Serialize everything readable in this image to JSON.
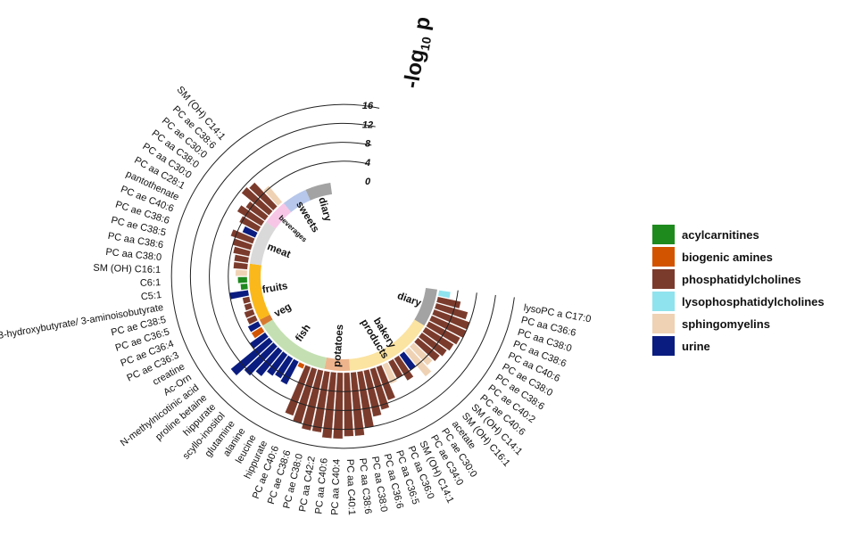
{
  "chart_data": {
    "type": "bar",
    "layout": "circular",
    "title": "-log10 p",
    "title_main": "-log",
    "title_sub": "10",
    "title_end": " p",
    "radial_ticks": [
      "16",
      "12",
      "8",
      "4",
      "0"
    ],
    "radial_tick_values": [
      16,
      12,
      8,
      4,
      0
    ],
    "ylim": [
      0,
      16
    ],
    "legend_placement": "right",
    "colors": {
      "acylcarnitines": "#1e8a1e",
      "biogenic_amines": "#d35400",
      "phosphatidylcholines": "#7b3b2c",
      "lysophosphatidylcholines": "#8fe3ee",
      "sphingomyelins": "#efd2b4",
      "urine": "#0a1c80"
    },
    "legend": [
      {
        "key": "acylcarnitines",
        "label": "acylcarnitines",
        "color": "#1e8a1e"
      },
      {
        "key": "biogenic_amines",
        "label": "biogenic amines",
        "color": "#d35400"
      },
      {
        "key": "phosphatidylcholines",
        "label": "phosphatidylcholines",
        "color": "#7b3b2c"
      },
      {
        "key": "lysophosphatidylcholines",
        "label": "lysophosphatidylcholines",
        "color": "#8fe3ee"
      },
      {
        "key": "sphingomyelins",
        "label": "sphingomyelins",
        "color": "#efd2b4"
      },
      {
        "key": "urine",
        "label": "urine",
        "color": "#0a1c80"
      }
    ],
    "food_groups": [
      {
        "name": "diary",
        "start": 0,
        "end": 6,
        "color": "#a3a3a3"
      },
      {
        "name": "bakery",
        "name2": "products",
        "start": 6,
        "end": 20,
        "color": "#fbe3a1"
      },
      {
        "name": "potatoes",
        "start": 20,
        "end": 24,
        "color": "#eeb58c"
      },
      {
        "name": "fish",
        "start": 24,
        "end": 36,
        "color": "#c4e0b2"
      },
      {
        "name": "veg",
        "start": 36,
        "end": 37,
        "color": "#d77a2f"
      },
      {
        "name": "fruits",
        "start": 37,
        "end": 46,
        "color": "#fbb81a"
      },
      {
        "name": "meat",
        "start": 46,
        "end": 53,
        "color": "#d9d9d9"
      },
      {
        "name": "beverages",
        "start": 53,
        "end": 57,
        "color": "#f7c6e6",
        "small": true
      },
      {
        "name": "sweets",
        "start": 57,
        "end": 61,
        "color": "#b7c7eb"
      },
      {
        "name": "diary",
        "start": 61,
        "end": 65,
        "color": "#a3a3a3"
      }
    ],
    "metabolites": [
      {
        "label": "lysoPC a C17:0",
        "value": 2.5,
        "class": "lysophosphatidylcholines"
      },
      {
        "label": "PC aa C36:6",
        "value": 5.0,
        "class": "phosphatidylcholines"
      },
      {
        "label": "PC aa C38:0",
        "value": 7.0,
        "class": "phosphatidylcholines"
      },
      {
        "label": "PC aa C38:6",
        "value": 8.0,
        "class": "phosphatidylcholines"
      },
      {
        "label": "PC aa C40:6",
        "value": 8.0,
        "class": "phosphatidylcholines"
      },
      {
        "label": "PC ae C38:0",
        "value": 7.5,
        "class": "phosphatidylcholines"
      },
      {
        "label": "PC ae C38:6",
        "value": 7.0,
        "class": "phosphatidylcholines"
      },
      {
        "label": "PC ae C40:2",
        "value": 6.5,
        "class": "phosphatidylcholines"
      },
      {
        "label": "PC ae C40:6",
        "value": 6.0,
        "class": "phosphatidylcholines"
      },
      {
        "label": "SM (OH) C14:1",
        "value": 5.5,
        "class": "sphingomyelins"
      },
      {
        "label": "SM (OH) C16:1",
        "value": 7.0,
        "class": "sphingomyelins"
      },
      {
        "label": "acetate",
        "value": 4.0,
        "class": "urine"
      },
      {
        "label": "PC ae C30:0",
        "value": 5.5,
        "class": "phosphatidylcholines"
      },
      {
        "label": "PC ae C34:0",
        "value": 4.0,
        "class": "phosphatidylcholines"
      },
      {
        "label": "SM (OH) C14:1",
        "value": 4.5,
        "class": "sphingomyelins"
      },
      {
        "label": "PC aa C36:0",
        "value": 7.5,
        "class": "phosphatidylcholines"
      },
      {
        "label": "PC aa C36:5",
        "value": 9.0,
        "class": "phosphatidylcholines"
      },
      {
        "label": "PC aa C36:6",
        "value": 10.0,
        "class": "phosphatidylcholines"
      },
      {
        "label": "PC aa C38:0",
        "value": 12.0,
        "class": "phosphatidylcholines"
      },
      {
        "label": "PC aa C38:6",
        "value": 13.5,
        "class": "phosphatidylcholines"
      },
      {
        "label": "PC aa C40:1",
        "value": 13.5,
        "class": "phosphatidylcholines"
      },
      {
        "label": "PC aa C40:4",
        "value": 14.0,
        "class": "phosphatidylcholines"
      },
      {
        "label": "PC aa C40:6",
        "value": 14.0,
        "class": "phosphatidylcholines"
      },
      {
        "label": "PC aa C42:2",
        "value": 13.0,
        "class": "phosphatidylcholines"
      },
      {
        "label": "PC ae C38:0",
        "value": 13.0,
        "class": "phosphatidylcholines"
      },
      {
        "label": "PC ae C38:6",
        "value": 12.0,
        "class": "phosphatidylcholines"
      },
      {
        "label": "PC ae C40:6",
        "value": 11.0,
        "class": "phosphatidylcholines"
      },
      {
        "label": "hippurate",
        "value": 1.0,
        "class": "biogenic_amines"
      },
      {
        "label": "leucine",
        "value": 5.5,
        "class": "urine"
      },
      {
        "label": "alanine",
        "value": 5.0,
        "class": "urine"
      },
      {
        "label": "glutamine",
        "value": 5.5,
        "class": "urine"
      },
      {
        "label": "scyllo-inositol",
        "value": 7.0,
        "class": "urine"
      },
      {
        "label": "hippurate",
        "value": 8.5,
        "class": "urine"
      },
      {
        "label": "proline betaine",
        "value": 10.5,
        "class": "urine"
      },
      {
        "label": "N-methylnicotinic acid",
        "value": 4.0,
        "class": "urine"
      },
      {
        "label": "Ac-Orn",
        "value": 2.5,
        "class": "biogenic_amines"
      },
      {
        "label": "creatine",
        "value": 2.5,
        "class": "urine"
      },
      {
        "label": "PC ae C36:3",
        "value": 2.0,
        "class": "phosphatidylcholines"
      },
      {
        "label": "PC ae C36:4",
        "value": 2.0,
        "class": "phosphatidylcholines"
      },
      {
        "label": "PC ae C36:5",
        "value": 1.5,
        "class": "phosphatidylcholines"
      },
      {
        "label": "PC ae C38:5",
        "value": 1.5,
        "class": "phosphatidylcholines"
      },
      {
        "label": "3-hydroxybutyrate/ 3-aminoisobutyrate",
        "value": 4.0,
        "class": "urine"
      },
      {
        "label": "C5:1",
        "value": 1.5,
        "class": "acylcarnitines"
      },
      {
        "label": "C6:1",
        "value": 2.0,
        "class": "acylcarnitines"
      },
      {
        "label": "SM (OH) C16:1",
        "value": 2.5,
        "class": "sphingomyelins"
      },
      {
        "label": "PC aa C38:0",
        "value": 3.0,
        "class": "phosphatidylcholines"
      },
      {
        "label": "PC aa C38:6",
        "value": 3.0,
        "class": "phosphatidylcholines"
      },
      {
        "label": "PC ae C38:5",
        "value": 3.5,
        "class": "phosphatidylcholines"
      },
      {
        "label": "PC ae C38:6",
        "value": 4.0,
        "class": "phosphatidylcholines"
      },
      {
        "label": "PC ae C40:6",
        "value": 5.0,
        "class": "phosphatidylcholines"
      },
      {
        "label": "pantothenate",
        "value": 3.0,
        "class": "urine"
      },
      {
        "label": "PC aa C28:1",
        "value": 4.5,
        "class": "phosphatidylcholines"
      },
      {
        "label": "PC aa C30:0",
        "value": 6.0,
        "class": "phosphatidylcholines"
      },
      {
        "label": "PC aa C38:0",
        "value": 5.0,
        "class": "phosphatidylcholines"
      },
      {
        "label": "PC ae C30:0",
        "value": 7.5,
        "class": "phosphatidylcholines"
      },
      {
        "label": "PC ae C38:6",
        "value": 7.0,
        "class": "phosphatidylcholines"
      },
      {
        "label": "SM (OH) C14:1",
        "value": 4.5,
        "class": "sphingomyelins"
      }
    ]
  }
}
